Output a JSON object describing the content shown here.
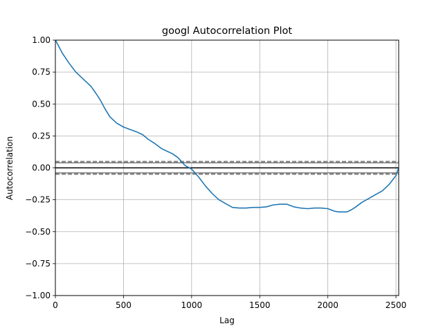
{
  "chart_data": {
    "type": "line",
    "title": "googl Autocorrelation Plot",
    "xlabel": "Lag",
    "ylabel": "Autocorrelation",
    "xlim": [
      0,
      2520
    ],
    "ylim": [
      -1.0,
      1.0
    ],
    "grid": true,
    "xticks": [
      0,
      500,
      1000,
      1500,
      2000,
      2500
    ],
    "xtick_labels": [
      "0",
      "500",
      "1000",
      "1500",
      "2000",
      "2500"
    ],
    "yticks": [
      1.0,
      0.75,
      0.5,
      0.25,
      0.0,
      -0.25,
      -0.5,
      -0.75,
      -1.0
    ],
    "ytick_labels": [
      "1.00",
      "0.75",
      "0.50",
      "0.25",
      "0.00",
      "−0.25",
      "−0.50",
      "−0.75",
      "−1.00"
    ],
    "reference_lines": [
      {
        "y": 0.0,
        "style": "solid",
        "color": "#000000"
      },
      {
        "y": 0.049,
        "style": "dashed",
        "color": "#808080"
      },
      {
        "y": -0.049,
        "style": "dashed",
        "color": "#808080"
      },
      {
        "y": 0.039,
        "style": "solid",
        "color": "#808080"
      },
      {
        "y": -0.039,
        "style": "solid",
        "color": "#808080"
      }
    ],
    "series": [
      {
        "color": "#1f77b4",
        "x": [
          1,
          50,
          100,
          150,
          200,
          260,
          300,
          330,
          360,
          400,
          450,
          500,
          550,
          600,
          640,
          680,
          730,
          780,
          820,
          860,
          900,
          950,
          1000,
          1050,
          1100,
          1150,
          1200,
          1250,
          1300,
          1350,
          1400,
          1450,
          1500,
          1550,
          1600,
          1650,
          1700,
          1750,
          1800,
          1850,
          1900,
          1950,
          2000,
          2050,
          2080,
          2110,
          2140,
          2170,
          2200,
          2250,
          2300,
          2350,
          2400,
          2450,
          2500,
          2520
        ],
        "y": [
          1.0,
          0.9,
          0.82,
          0.75,
          0.7,
          0.64,
          0.58,
          0.53,
          0.47,
          0.4,
          0.35,
          0.32,
          0.3,
          0.28,
          0.26,
          0.225,
          0.19,
          0.15,
          0.13,
          0.11,
          0.08,
          0.02,
          -0.01,
          -0.07,
          -0.14,
          -0.2,
          -0.25,
          -0.28,
          -0.31,
          -0.315,
          -0.315,
          -0.31,
          -0.31,
          -0.305,
          -0.29,
          -0.285,
          -0.285,
          -0.305,
          -0.315,
          -0.32,
          -0.315,
          -0.315,
          -0.32,
          -0.34,
          -0.345,
          -0.345,
          -0.345,
          -0.33,
          -0.31,
          -0.27,
          -0.24,
          -0.21,
          -0.18,
          -0.13,
          -0.06,
          0.0
        ]
      }
    ]
  }
}
